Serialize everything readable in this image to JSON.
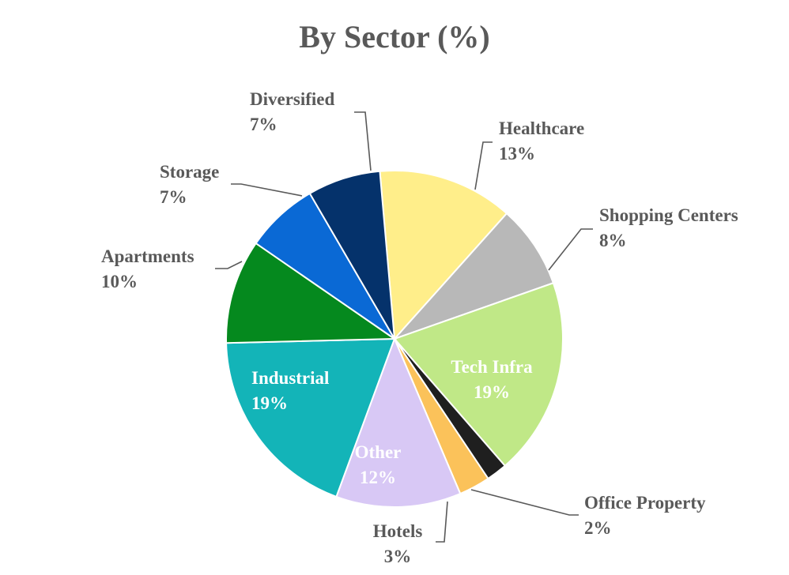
{
  "chart_data": {
    "type": "pie",
    "title": "By Sector (%)",
    "start_angle_deg": -5,
    "direction": "clockwise",
    "slices": [
      {
        "label": "Healthcare",
        "value": 13,
        "display": "13%",
        "color": "#FFEE8A",
        "label_position": "outside"
      },
      {
        "label": "Shopping Centers",
        "value": 8,
        "display": "8%",
        "color": "#B8B8B8",
        "label_position": "outside"
      },
      {
        "label": "Tech Infra",
        "value": 19,
        "display": "19%",
        "color": "#C0E887",
        "label_position": "inside"
      },
      {
        "label": "Office Property",
        "value": 2,
        "display": "2%",
        "color": "#1F1F1F",
        "label_position": "outside"
      },
      {
        "label": "Hotels",
        "value": 3,
        "display": "3%",
        "color": "#FBC25A",
        "label_position": "outside"
      },
      {
        "label": "Other",
        "value": 12,
        "display": "12%",
        "color": "#D8C8F5",
        "label_position": "inside"
      },
      {
        "label": "Industrial",
        "value": 19,
        "display": "19%",
        "color": "#13B4B8",
        "label_position": "inside"
      },
      {
        "label": "Apartments",
        "value": 10,
        "display": "10%",
        "color": "#05891E",
        "label_position": "outside"
      },
      {
        "label": "Storage",
        "value": 7,
        "display": "7%",
        "color": "#0A69D5",
        "label_position": "outside"
      },
      {
        "label": "Diversified",
        "value": 7,
        "display": "7%",
        "color": "#05326B",
        "label_position": "outside"
      }
    ]
  }
}
